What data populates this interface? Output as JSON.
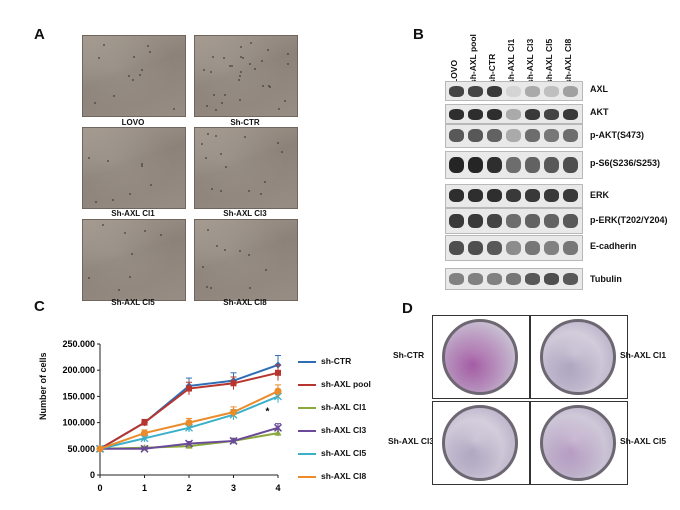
{
  "panels": {
    "a": "A",
    "b": "B",
    "c": "C",
    "d": "D"
  },
  "micrographs": [
    {
      "label": "LOVO"
    },
    {
      "label": "Sh-CTR"
    },
    {
      "label": "Sh-AXL Cl1"
    },
    {
      "label": "Sh-AXL Cl3"
    },
    {
      "label": "Sh-AXL Cl5"
    },
    {
      "label": "Sh-AXL Cl8"
    }
  ],
  "blot": {
    "lanes": [
      "LOVO",
      "sh-AXL pool",
      "sh-CTR",
      "sh-AXL Cl1",
      "sh-AXL Cl3",
      "sh-AXL Cl5",
      "sh-AXL Cl8"
    ],
    "proteins": [
      {
        "name": "AXL",
        "intensity": [
          0.8,
          0.8,
          0.85,
          0.1,
          0.3,
          0.2,
          0.35
        ]
      },
      {
        "name": "AKT",
        "intensity": [
          0.9,
          0.9,
          0.9,
          0.3,
          0.85,
          0.8,
          0.85
        ]
      },
      {
        "name": "p-AKT(S473)",
        "intensity": [
          0.7,
          0.7,
          0.65,
          0.3,
          0.6,
          0.55,
          0.6
        ]
      },
      {
        "name": "p-S6(S236/S253)",
        "intensity": [
          0.95,
          0.95,
          0.9,
          0.6,
          0.65,
          0.7,
          0.75
        ]
      },
      {
        "name": "ERK",
        "intensity": [
          0.9,
          0.9,
          0.9,
          0.85,
          0.85,
          0.85,
          0.85
        ]
      },
      {
        "name": "p-ERK(T202/Y204)",
        "intensity": [
          0.85,
          0.85,
          0.8,
          0.6,
          0.65,
          0.65,
          0.7
        ]
      },
      {
        "name": "E-cadherin",
        "intensity": [
          0.75,
          0.75,
          0.7,
          0.45,
          0.55,
          0.5,
          0.55
        ]
      },
      {
        "name": "Tubulin",
        "intensity": [
          0.5,
          0.5,
          0.5,
          0.55,
          0.7,
          0.75,
          0.7
        ]
      }
    ]
  },
  "chart_data": {
    "type": "line",
    "ylabel": "Number of cells",
    "x": [
      0,
      1,
      2,
      3,
      4
    ],
    "xticks": [
      "0",
      "1",
      "2",
      "3",
      "4"
    ],
    "yticks": [
      "0",
      "50.000",
      "100.000",
      "150.000",
      "200.000",
      "250.000"
    ],
    "ylim": [
      0,
      250000
    ],
    "annotation": "*",
    "series": [
      {
        "name": "sh-CTR",
        "color": "#2e6db4",
        "marker": "diamond",
        "values": [
          50000,
          100000,
          170000,
          180000,
          210000
        ],
        "err": [
          3000,
          6000,
          15000,
          15000,
          18000
        ]
      },
      {
        "name": "sh-AXL pool",
        "color": "#b8352f",
        "marker": "square",
        "values": [
          50000,
          100000,
          165000,
          175000,
          195000
        ],
        "err": [
          3000,
          6000,
          12000,
          12000,
          15000
        ]
      },
      {
        "name": "sh-AXL Cl1",
        "color": "#8aa83b",
        "marker": "triangle",
        "values": [
          50000,
          52000,
          55000,
          65000,
          80000
        ],
        "err": [
          2000,
          3000,
          4000,
          5000,
          6000
        ]
      },
      {
        "name": "sh-AXL Cl3",
        "color": "#6a4a98",
        "marker": "x",
        "values": [
          50000,
          50000,
          60000,
          65000,
          90000
        ],
        "err": [
          2000,
          3000,
          4000,
          5000,
          8000
        ]
      },
      {
        "name": "sh-AXL Cl5",
        "color": "#3bb0c9",
        "marker": "star",
        "values": [
          50000,
          70000,
          90000,
          115000,
          150000
        ],
        "err": [
          3000,
          5000,
          8000,
          10000,
          12000
        ]
      },
      {
        "name": "sh-AXL Cl8",
        "color": "#ea8c2c",
        "marker": "circle",
        "values": [
          50000,
          80000,
          100000,
          120000,
          160000
        ],
        "err": [
          3000,
          6000,
          8000,
          10000,
          12000
        ]
      }
    ]
  },
  "colony_wells": [
    {
      "label": "Sh-CTR",
      "stain": "#9a4a9a",
      "stain_level": 0.9
    },
    {
      "label": "Sh-AXL Cl1",
      "stain": "#8f85a8",
      "stain_level": 0.3
    },
    {
      "label": "Sh-AXL Cl3",
      "stain": "#8f85a8",
      "stain_level": 0.25
    },
    {
      "label": "Sh-AXL Cl5",
      "stain": "#a07fb0",
      "stain_level": 0.45
    }
  ]
}
